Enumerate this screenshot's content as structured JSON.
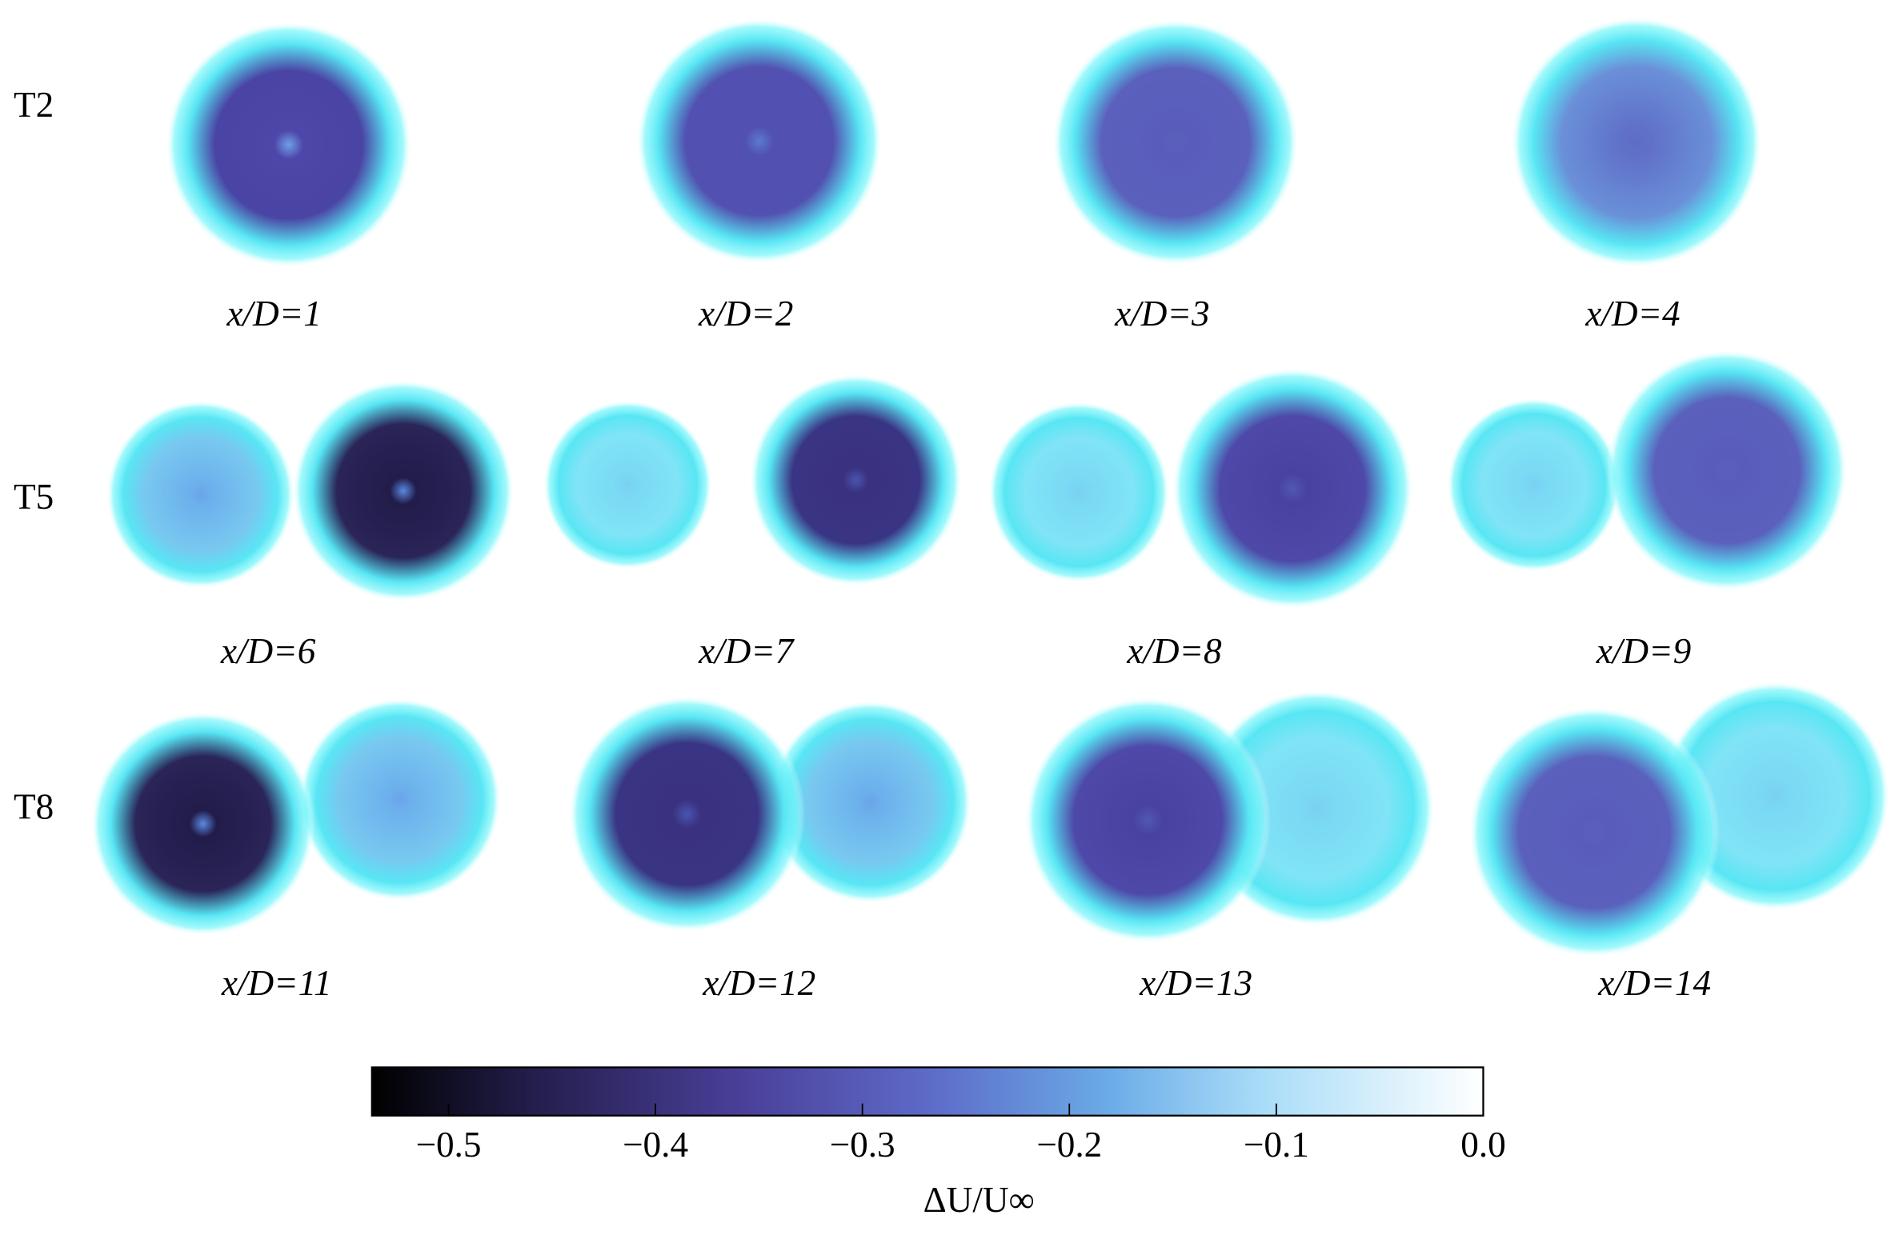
{
  "chart_data": {
    "type": "heatmap",
    "rows": [
      {
        "label": "T2",
        "panels": [
          "x/D=1",
          "x/D=2",
          "x/D=3",
          "x/D=4"
        ]
      },
      {
        "label": "T5",
        "panels": [
          "x/D=6",
          "x/D=7",
          "x/D=8",
          "x/D=9"
        ]
      },
      {
        "label": "T8",
        "panels": [
          "x/D=11",
          "x/D=12",
          "x/D=13",
          "x/D=14"
        ]
      }
    ],
    "colorbar": {
      "label": "ΔU/U∞",
      "xlim": [
        -0.537,
        0.0
      ],
      "xticks": [
        {
          "value": -0.5,
          "label": "−0.5"
        },
        {
          "value": -0.4,
          "label": "−0.4"
        },
        {
          "value": -0.3,
          "label": "−0.3"
        },
        {
          "value": -0.2,
          "label": "−0.2"
        },
        {
          "value": -0.1,
          "label": "−0.1"
        },
        {
          "value": 0.0,
          "label": "0.0"
        }
      ]
    }
  }
}
